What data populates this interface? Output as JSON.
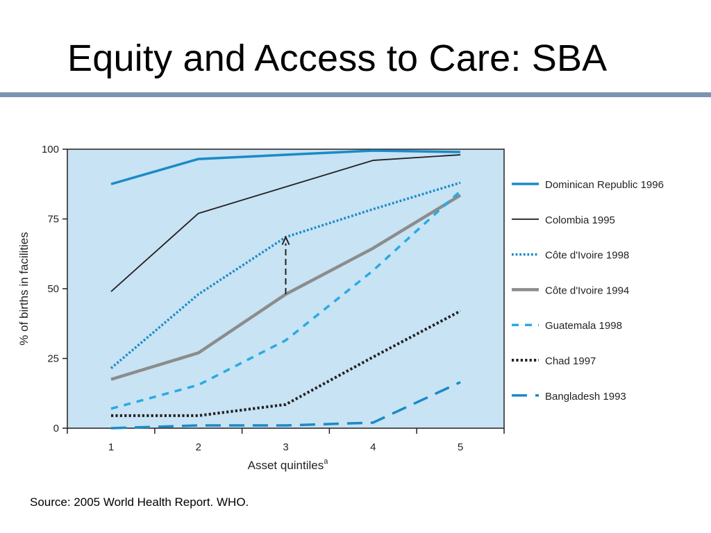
{
  "slide": {
    "title": "Equity and Access to Care: SBA",
    "source": "Source: 2005 World Health Report. WHO."
  },
  "chart_data": {
    "type": "line",
    "xlabel": "Asset quintiles",
    "xlabel_superscript": "a",
    "ylabel": "% of births in facilities",
    "x": [
      1,
      2,
      3,
      4,
      5
    ],
    "ylim": [
      0,
      100
    ],
    "yticks": [
      0,
      25,
      50,
      75,
      100
    ],
    "grid": false,
    "legend_position": "right",
    "plot_background": "#c7e3f4",
    "series": [
      {
        "name": "Dominican Republic 1996",
        "values": [
          87.5,
          96.5,
          98,
          99.5,
          99
        ],
        "color": "#1b8ac6",
        "style": "solid",
        "width": 3.5
      },
      {
        "name": "Colombia 1995",
        "values": [
          49,
          77,
          86.5,
          96,
          98
        ],
        "color": "#231f20",
        "style": "solid",
        "width": 1.8
      },
      {
        "name": "Côte d'Ivoire 1998",
        "values": [
          21.5,
          48,
          68.5,
          78.5,
          88
        ],
        "color": "#1b8ac6",
        "style": "dotted",
        "width": 3.5
      },
      {
        "name": "Côte d'Ivoire 1994",
        "values": [
          17.5,
          27,
          48,
          64.5,
          83.5
        ],
        "color": "#8c8c8c",
        "style": "solid",
        "width": 4.5
      },
      {
        "name": "Guatemala 1998",
        "values": [
          7,
          15.5,
          31.5,
          56.5,
          85
        ],
        "color": "#2aaae2",
        "style": "dashed",
        "width": 3.5
      },
      {
        "name": "Chad 1997",
        "values": [
          4.5,
          4.5,
          8.5,
          25.5,
          42
        ],
        "color": "#231f20",
        "style": "dotted",
        "width": 4
      },
      {
        "name": "Bangladesh 1993",
        "values": [
          0,
          1,
          1,
          2,
          16.5
        ],
        "color": "#1b8ac6",
        "style": "longdash",
        "width": 3.5
      }
    ],
    "annotation": {
      "type": "arrow",
      "x": 3,
      "from": 48,
      "to": 68.5,
      "style": "dashed",
      "color": "#231f20"
    }
  }
}
